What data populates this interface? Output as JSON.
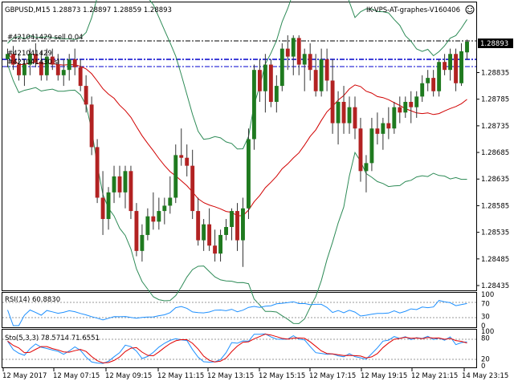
{
  "header": {
    "symbol_text": "GBPUSD,M15  1.28873 1.28897 1.28859 1.28893",
    "ea_text": "IK-VPS-AT-graphes-V160406",
    "smiley_icon": "smiley-face-icon"
  },
  "order_labels": [
    "#421041429 sell 0.04",
    "#421041429",
    "#421041430 sl"
  ],
  "price_axis": {
    "ticks": [
      "1.28893",
      "1.28835",
      "1.28785",
      "1.28735",
      "1.28685",
      "1.28635",
      "1.28585",
      "1.28535",
      "1.28485",
      "1.28435"
    ],
    "current_price": "1.28893",
    "current_color": "#000000"
  },
  "rsi": {
    "label": "RSI(14) 60.8830",
    "levels": [
      "100",
      "70",
      "30",
      "0"
    ],
    "color": "#1e90ff"
  },
  "stoch": {
    "label": "Sto(5,3,3) 78.5714 71.6551",
    "levels": [
      "100",
      "80",
      "20",
      "0"
    ],
    "main_color": "#1e90ff",
    "signal_color": "#e00000"
  },
  "time_axis": [
    "12 May 2017",
    "12 May 07:15",
    "12 May 09:15",
    "12 May 11:15",
    "12 May 13:15",
    "12 May 15:15",
    "12 May 17:15",
    "12 May 19:15",
    "12 May 21:15",
    "14 May 23:15"
  ],
  "colors": {
    "bull": "#1f7a1f",
    "bear": "#b22222",
    "bands": "#2e8b57",
    "ma": "#d10000",
    "order_line": "#0000cc"
  },
  "chart_data": {
    "type": "candlestick",
    "symbol": "GBPUSD",
    "timeframe": "M15",
    "ylim": [
      1.2842,
      1.2893
    ],
    "candles": [
      {
        "o": 1.2886,
        "h": 1.2888,
        "l": 1.28845,
        "c": 1.2887
      },
      {
        "o": 1.2887,
        "h": 1.28885,
        "l": 1.2884,
        "c": 1.2885
      },
      {
        "o": 1.2885,
        "h": 1.2887,
        "l": 1.2882,
        "c": 1.2883
      },
      {
        "o": 1.2883,
        "h": 1.2886,
        "l": 1.2881,
        "c": 1.2885
      },
      {
        "o": 1.2885,
        "h": 1.2888,
        "l": 1.2883,
        "c": 1.2887
      },
      {
        "o": 1.2887,
        "h": 1.2889,
        "l": 1.28845,
        "c": 1.28855
      },
      {
        "o": 1.28855,
        "h": 1.28875,
        "l": 1.2882,
        "c": 1.2883
      },
      {
        "o": 1.2883,
        "h": 1.2888,
        "l": 1.2882,
        "c": 1.28865
      },
      {
        "o": 1.28865,
        "h": 1.2888,
        "l": 1.2884,
        "c": 1.2885
      },
      {
        "o": 1.2885,
        "h": 1.2887,
        "l": 1.2882,
        "c": 1.2883
      },
      {
        "o": 1.2883,
        "h": 1.2886,
        "l": 1.2881,
        "c": 1.2884
      },
      {
        "o": 1.2884,
        "h": 1.2887,
        "l": 1.2882,
        "c": 1.2886
      },
      {
        "o": 1.2886,
        "h": 1.2888,
        "l": 1.2883,
        "c": 1.28845
      },
      {
        "o": 1.28845,
        "h": 1.2886,
        "l": 1.288,
        "c": 1.2881
      },
      {
        "o": 1.2881,
        "h": 1.2883,
        "l": 1.2876,
        "c": 1.28775
      },
      {
        "o": 1.28775,
        "h": 1.2879,
        "l": 1.2868,
        "c": 1.28695
      },
      {
        "o": 1.28695,
        "h": 1.2871,
        "l": 1.2859,
        "c": 1.286
      },
      {
        "o": 1.286,
        "h": 1.2865,
        "l": 1.2853,
        "c": 1.2856
      },
      {
        "o": 1.2856,
        "h": 1.2862,
        "l": 1.2854,
        "c": 1.2861
      },
      {
        "o": 1.2861,
        "h": 1.2866,
        "l": 1.2859,
        "c": 1.2864
      },
      {
        "o": 1.2864,
        "h": 1.2866,
        "l": 1.286,
        "c": 1.2861
      },
      {
        "o": 1.2861,
        "h": 1.2866,
        "l": 1.2858,
        "c": 1.2865
      },
      {
        "o": 1.2865,
        "h": 1.2866,
        "l": 1.2856,
        "c": 1.28575
      },
      {
        "o": 1.28575,
        "h": 1.2859,
        "l": 1.2849,
        "c": 1.285
      },
      {
        "o": 1.285,
        "h": 1.2855,
        "l": 1.2848,
        "c": 1.2853
      },
      {
        "o": 1.2853,
        "h": 1.2858,
        "l": 1.2852,
        "c": 1.28565
      },
      {
        "o": 1.28565,
        "h": 1.2861,
        "l": 1.2854,
        "c": 1.28555
      },
      {
        "o": 1.28555,
        "h": 1.286,
        "l": 1.2854,
        "c": 1.28575
      },
      {
        "o": 1.28575,
        "h": 1.286,
        "l": 1.2855,
        "c": 1.28585
      },
      {
        "o": 1.28585,
        "h": 1.2864,
        "l": 1.2857,
        "c": 1.286
      },
      {
        "o": 1.286,
        "h": 1.287,
        "l": 1.2859,
        "c": 1.2868
      },
      {
        "o": 1.2868,
        "h": 1.2873,
        "l": 1.2866,
        "c": 1.28675
      },
      {
        "o": 1.28675,
        "h": 1.287,
        "l": 1.2864,
        "c": 1.2866
      },
      {
        "o": 1.2866,
        "h": 1.2869,
        "l": 1.2856,
        "c": 1.28575
      },
      {
        "o": 1.28575,
        "h": 1.286,
        "l": 1.2851,
        "c": 1.2852
      },
      {
        "o": 1.2852,
        "h": 1.2856,
        "l": 1.285,
        "c": 1.2855
      },
      {
        "o": 1.2855,
        "h": 1.2858,
        "l": 1.285,
        "c": 1.2851
      },
      {
        "o": 1.2851,
        "h": 1.2854,
        "l": 1.2848,
        "c": 1.28495
      },
      {
        "o": 1.28495,
        "h": 1.2854,
        "l": 1.2848,
        "c": 1.2853
      },
      {
        "o": 1.2853,
        "h": 1.2856,
        "l": 1.2852,
        "c": 1.28545
      },
      {
        "o": 1.28545,
        "h": 1.2858,
        "l": 1.2852,
        "c": 1.28575
      },
      {
        "o": 1.28575,
        "h": 1.2859,
        "l": 1.285,
        "c": 1.2852
      },
      {
        "o": 1.2852,
        "h": 1.286,
        "l": 1.2847,
        "c": 1.2858
      },
      {
        "o": 1.2858,
        "h": 1.2873,
        "l": 1.2856,
        "c": 1.2871
      },
      {
        "o": 1.2871,
        "h": 1.2885,
        "l": 1.2869,
        "c": 1.2884
      },
      {
        "o": 1.2884,
        "h": 1.2886,
        "l": 1.2878,
        "c": 1.288
      },
      {
        "o": 1.288,
        "h": 1.2887,
        "l": 1.2876,
        "c": 1.2885
      },
      {
        "o": 1.2885,
        "h": 1.2886,
        "l": 1.2877,
        "c": 1.2878
      },
      {
        "o": 1.2878,
        "h": 1.2883,
        "l": 1.2876,
        "c": 1.2881
      },
      {
        "o": 1.2881,
        "h": 1.2889,
        "l": 1.288,
        "c": 1.2888
      },
      {
        "o": 1.2888,
        "h": 1.28905,
        "l": 1.2884,
        "c": 1.28865
      },
      {
        "o": 1.28865,
        "h": 1.28905,
        "l": 1.2883,
        "c": 1.289
      },
      {
        "o": 1.289,
        "h": 1.28905,
        "l": 1.2883,
        "c": 1.2885
      },
      {
        "o": 1.2885,
        "h": 1.2888,
        "l": 1.288,
        "c": 1.2887
      },
      {
        "o": 1.2887,
        "h": 1.2889,
        "l": 1.2882,
        "c": 1.2884
      },
      {
        "o": 1.2884,
        "h": 1.2887,
        "l": 1.2879,
        "c": 1.288
      },
      {
        "o": 1.288,
        "h": 1.2888,
        "l": 1.2879,
        "c": 1.2886
      },
      {
        "o": 1.2886,
        "h": 1.2888,
        "l": 1.288,
        "c": 1.2882
      },
      {
        "o": 1.2882,
        "h": 1.2886,
        "l": 1.2872,
        "c": 1.2874
      },
      {
        "o": 1.2874,
        "h": 1.288,
        "l": 1.287,
        "c": 1.2878
      },
      {
        "o": 1.2878,
        "h": 1.2881,
        "l": 1.2872,
        "c": 1.2874
      },
      {
        "o": 1.2874,
        "h": 1.2879,
        "l": 1.2872,
        "c": 1.2877
      },
      {
        "o": 1.2877,
        "h": 1.2879,
        "l": 1.2871,
        "c": 1.2873
      },
      {
        "o": 1.2873,
        "h": 1.2875,
        "l": 1.2863,
        "c": 1.2865
      },
      {
        "o": 1.2865,
        "h": 1.2868,
        "l": 1.2861,
        "c": 1.28665
      },
      {
        "o": 1.28665,
        "h": 1.2875,
        "l": 1.2865,
        "c": 1.2873
      },
      {
        "o": 1.2873,
        "h": 1.2876,
        "l": 1.287,
        "c": 1.2872
      },
      {
        "o": 1.2872,
        "h": 1.2875,
        "l": 1.2869,
        "c": 1.2874
      },
      {
        "o": 1.2874,
        "h": 1.2877,
        "l": 1.2871,
        "c": 1.2873
      },
      {
        "o": 1.2873,
        "h": 1.2878,
        "l": 1.2872,
        "c": 1.2877
      },
      {
        "o": 1.2877,
        "h": 1.2879,
        "l": 1.2874,
        "c": 1.2876
      },
      {
        "o": 1.2876,
        "h": 1.2879,
        "l": 1.2875,
        "c": 1.2878
      },
      {
        "o": 1.2878,
        "h": 1.288,
        "l": 1.2874,
        "c": 1.2877
      },
      {
        "o": 1.2877,
        "h": 1.288,
        "l": 1.2875,
        "c": 1.2879
      },
      {
        "o": 1.2879,
        "h": 1.2883,
        "l": 1.2878,
        "c": 1.28815
      },
      {
        "o": 1.28815,
        "h": 1.2884,
        "l": 1.288,
        "c": 1.28825
      },
      {
        "o": 1.28825,
        "h": 1.2884,
        "l": 1.2879,
        "c": 1.288
      },
      {
        "o": 1.288,
        "h": 1.2886,
        "l": 1.2879,
        "c": 1.28855
      },
      {
        "o": 1.28855,
        "h": 1.2887,
        "l": 1.2883,
        "c": 1.2884
      },
      {
        "o": 1.2884,
        "h": 1.2888,
        "l": 1.2882,
        "c": 1.2887
      },
      {
        "o": 1.2887,
        "h": 1.2888,
        "l": 1.288,
        "c": 1.28815
      },
      {
        "o": 1.28815,
        "h": 1.2889,
        "l": 1.2881,
        "c": 1.28875
      },
      {
        "o": 1.28873,
        "h": 1.28897,
        "l": 1.28859,
        "c": 1.28893
      }
    ]
  }
}
